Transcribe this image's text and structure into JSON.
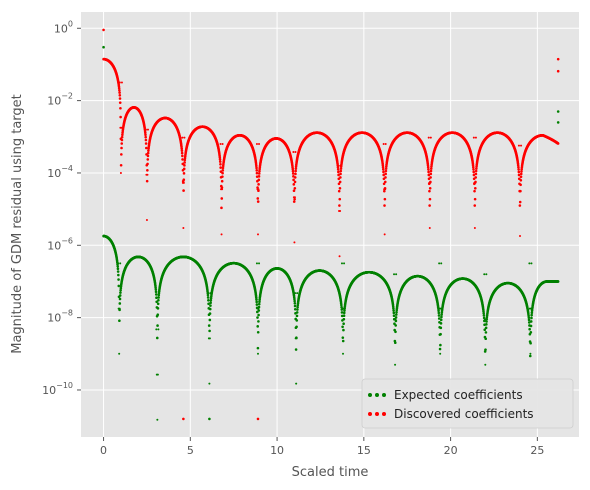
{
  "chart_data": {
    "type": "scatter",
    "title": "",
    "xlabel": "Scaled time",
    "ylabel": "Magnitude of GDM residual using target",
    "xlim": [
      -1.3,
      27.4
    ],
    "ylim_log10": [
      -11.3,
      0.45
    ],
    "yscale": "log",
    "grid": true,
    "legend_position": "lower-right",
    "x_ticks": [
      0,
      5,
      10,
      15,
      20,
      25
    ],
    "x_tick_labels": [
      "0",
      "5",
      "10",
      "15",
      "20",
      "25"
    ],
    "y_ticks_log10": [
      0,
      -2,
      -4,
      -6,
      -8,
      -10
    ],
    "y_tick_labels": [
      {
        "base": "10",
        "exp": "0"
      },
      {
        "base": "10",
        "exp": "−2"
      },
      {
        "base": "10",
        "exp": "−4"
      },
      {
        "base": "10",
        "exp": "−6"
      },
      {
        "base": "10",
        "exp": "−8"
      },
      {
        "base": "10",
        "exp": "−10"
      }
    ],
    "x_end": 26.2,
    "series": [
      {
        "name": "Expected coefficients",
        "color": "#008000",
        "x0": 0.0,
        "y0": 1.8e-06,
        "zeros": [
          0.9,
          3.1,
          6.1,
          8.9,
          11.1,
          13.8,
          16.8,
          19.4,
          22.0,
          24.6
        ],
        "minima": [
          1e-09,
          1.5e-11,
          1.5e-10,
          1e-09,
          1.5e-10,
          1e-09,
          5e-10,
          1e-09,
          5e-10,
          1e-09
        ],
        "peaks": [
          {
            "x": 1.9,
            "y": 4.8e-07
          },
          {
            "x": 4.6,
            "y": 4.8e-07
          },
          {
            "x": 7.5,
            "y": 3.2e-07
          },
          {
            "x": 10.0,
            "y": 2.3e-07
          },
          {
            "x": 12.4,
            "y": 2e-07
          },
          {
            "x": 15.3,
            "y": 1.8e-07
          },
          {
            "x": 18.1,
            "y": 1.4e-07
          },
          {
            "x": 20.7,
            "y": 1.2e-07
          },
          {
            "x": 23.3,
            "y": 9e-08
          },
          {
            "x": 26.1,
            "y": 1e-07
          }
        ],
        "outliers": [
          {
            "x": 26.2,
            "y": 0.005
          },
          {
            "x": 26.2,
            "y": 0.0025
          },
          {
            "x": 0.0,
            "y": 0.3
          }
        ]
      },
      {
        "name": "Discovered coefficients",
        "color": "#ff0000",
        "x0": 0.0,
        "y0": 0.14,
        "zeros": [
          1.0,
          2.5,
          4.6,
          6.8,
          8.9,
          11.0,
          13.6,
          16.2,
          18.8,
          21.4,
          24.0
        ],
        "minima": [
          0.0001,
          5e-06,
          3e-06,
          2e-06,
          2e-06,
          1.2e-06,
          5e-07,
          2e-06,
          3e-06,
          3e-06,
          1.8e-06
        ],
        "peaks": [
          {
            "x": 1.7,
            "y": 0.0065
          },
          {
            "x": 3.6,
            "y": 0.0033
          },
          {
            "x": 5.7,
            "y": 0.0019
          },
          {
            "x": 7.8,
            "y": 0.0011
          },
          {
            "x": 10.0,
            "y": 0.0009
          },
          {
            "x": 12.3,
            "y": 0.0013
          },
          {
            "x": 14.9,
            "y": 0.0013
          },
          {
            "x": 17.5,
            "y": 0.0013
          },
          {
            "x": 20.1,
            "y": 0.0013
          },
          {
            "x": 22.7,
            "y": 0.0013
          },
          {
            "x": 25.1,
            "y": 0.0011
          }
        ],
        "end_value": 0.00065,
        "outliers": [
          {
            "x": 0.0,
            "y": 0.9
          },
          {
            "x": 26.2,
            "y": 0.14
          },
          {
            "x": 26.2,
            "y": 0.065
          }
        ]
      }
    ]
  }
}
